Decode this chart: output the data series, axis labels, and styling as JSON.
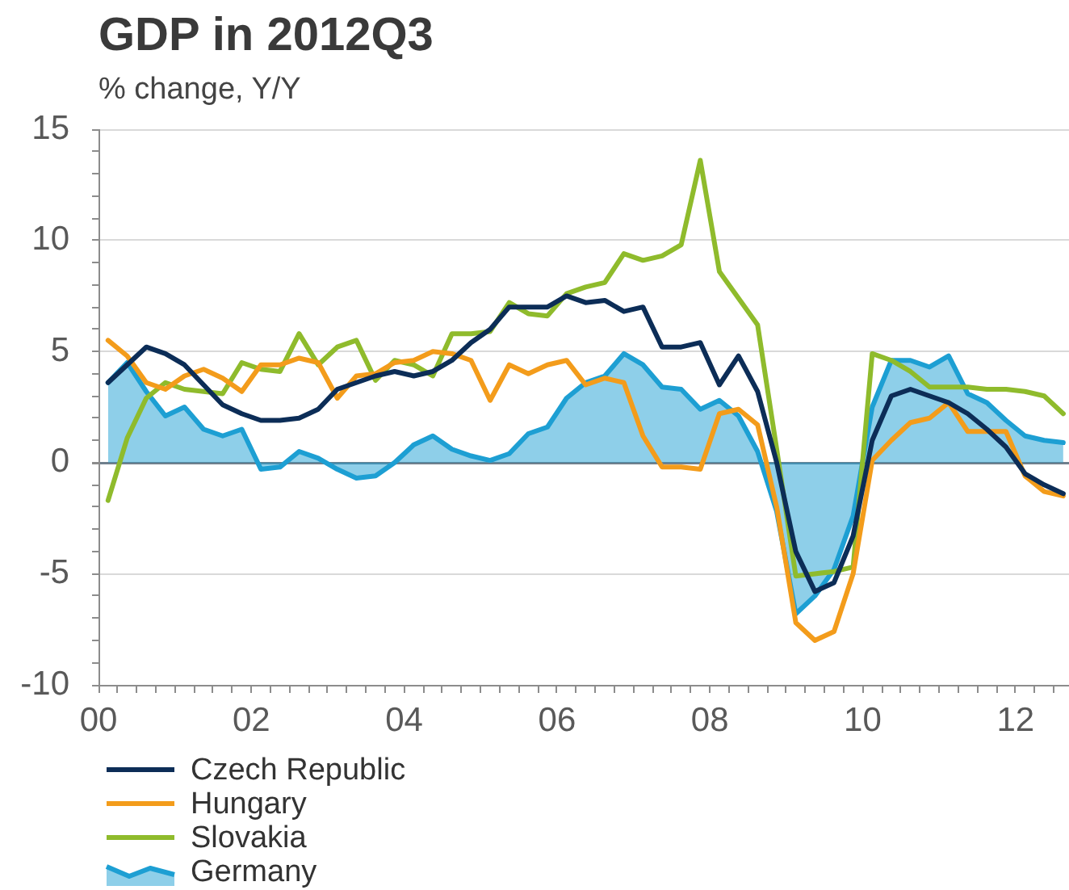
{
  "chart_data": {
    "type": "line",
    "title": "GDP in 2012Q3",
    "subtitle": "% change, Y/Y",
    "x": [
      2000.125,
      2000.375,
      2000.625,
      2000.875,
      2001.125,
      2001.375,
      2001.625,
      2001.875,
      2002.125,
      2002.375,
      2002.625,
      2002.875,
      2003.125,
      2003.375,
      2003.625,
      2003.875,
      2004.125,
      2004.375,
      2004.625,
      2004.875,
      2005.125,
      2005.375,
      2005.625,
      2005.875,
      2006.125,
      2006.375,
      2006.625,
      2006.875,
      2007.125,
      2007.375,
      2007.625,
      2007.875,
      2008.125,
      2008.375,
      2008.625,
      2008.875,
      2009.125,
      2009.375,
      2009.625,
      2009.875,
      2010.125,
      2010.375,
      2010.625,
      2010.875,
      2011.125,
      2011.375,
      2011.625,
      2011.875,
      2012.125,
      2012.375,
      2012.625
    ],
    "series": [
      {
        "name": "Czech Republic",
        "type": "line",
        "color": "#0c2d57",
        "values": [
          3.6,
          4.4,
          5.2,
          4.9,
          4.4,
          3.5,
          2.6,
          2.2,
          1.9,
          1.9,
          2.0,
          2.4,
          3.3,
          3.6,
          3.9,
          4.1,
          3.9,
          4.1,
          4.6,
          5.4,
          6.0,
          7.0,
          7.0,
          7.0,
          7.5,
          7.2,
          7.3,
          6.8,
          7.0,
          5.2,
          5.2,
          5.4,
          3.5,
          4.8,
          3.2,
          0.0,
          -4.0,
          -5.8,
          -5.4,
          -3.3,
          1.0,
          3.0,
          3.3,
          3.0,
          2.7,
          2.2,
          1.5,
          0.7,
          -0.5,
          -1.0,
          -1.4
        ]
      },
      {
        "name": "Hungary",
        "type": "line",
        "color": "#f39c1b",
        "values": [
          5.5,
          4.8,
          3.6,
          3.3,
          3.9,
          4.2,
          3.8,
          3.2,
          4.4,
          4.4,
          4.7,
          4.5,
          2.9,
          3.9,
          4.0,
          4.5,
          4.6,
          5.0,
          4.9,
          4.6,
          2.8,
          4.4,
          4.0,
          4.4,
          4.6,
          3.5,
          3.8,
          3.6,
          1.2,
          -0.2,
          -0.2,
          -0.3,
          2.2,
          2.4,
          1.7,
          -2.0,
          -7.2,
          -8.0,
          -7.6,
          -5.0,
          0.1,
          1.0,
          1.8,
          2.0,
          2.7,
          1.4,
          1.4,
          1.4,
          -0.6,
          -1.3,
          -1.5
        ]
      },
      {
        "name": "Slovakia",
        "type": "line",
        "color": "#8fbb2c",
        "values": [
          -1.7,
          1.1,
          2.9,
          3.6,
          3.3,
          3.2,
          3.1,
          4.5,
          4.2,
          4.1,
          5.8,
          4.4,
          5.2,
          5.5,
          3.7,
          4.6,
          4.4,
          3.9,
          5.8,
          5.8,
          5.9,
          7.2,
          6.7,
          6.6,
          7.6,
          7.9,
          8.1,
          9.4,
          9.1,
          9.3,
          9.8,
          13.6,
          8.6,
          7.4,
          6.2,
          0.6,
          -5.1,
          -5.0,
          -4.9,
          -4.7,
          4.9,
          4.6,
          4.1,
          3.4,
          3.4,
          3.4,
          3.3,
          3.3,
          3.2,
          3.0,
          2.2
        ]
      },
      {
        "name": "Germany",
        "type": "area",
        "color": "#1d9fd3",
        "values": [
          3.6,
          4.5,
          3.2,
          2.1,
          2.5,
          1.5,
          1.2,
          1.5,
          -0.3,
          -0.2,
          0.5,
          0.2,
          -0.3,
          -0.7,
          -0.6,
          0.0,
          0.8,
          1.2,
          0.6,
          0.3,
          0.1,
          0.4,
          1.3,
          1.6,
          2.9,
          3.6,
          3.9,
          4.9,
          4.4,
          3.4,
          3.3,
          2.4,
          2.8,
          2.1,
          0.5,
          -2.2,
          -6.8,
          -6.0,
          -4.8,
          -2.4,
          2.5,
          4.6,
          4.6,
          4.3,
          4.8,
          3.1,
          2.7,
          1.9,
          1.2,
          1.0,
          0.9
        ]
      }
    ],
    "xlim": [
      2000,
      2012.7
    ],
    "xticks": [
      {
        "value": 2000,
        "label": "00"
      },
      {
        "value": 2000.25,
        "label": null
      },
      {
        "value": 2000.5,
        "label": null
      },
      {
        "value": 2000.75,
        "label": null
      },
      {
        "value": 2001,
        "label": null
      },
      {
        "value": 2001.25,
        "label": null
      },
      {
        "value": 2001.5,
        "label": null
      },
      {
        "value": 2001.75,
        "label": null
      },
      {
        "value": 2002,
        "label": "02"
      },
      {
        "value": 2002.25,
        "label": null
      },
      {
        "value": 2002.5,
        "label": null
      },
      {
        "value": 2002.75,
        "label": null
      },
      {
        "value": 2003,
        "label": null
      },
      {
        "value": 2003.25,
        "label": null
      },
      {
        "value": 2003.5,
        "label": null
      },
      {
        "value": 2003.75,
        "label": null
      },
      {
        "value": 2004,
        "label": "04"
      },
      {
        "value": 2004.25,
        "label": null
      },
      {
        "value": 2004.5,
        "label": null
      },
      {
        "value": 2004.75,
        "label": null
      },
      {
        "value": 2005,
        "label": null
      },
      {
        "value": 2005.25,
        "label": null
      },
      {
        "value": 2005.5,
        "label": null
      },
      {
        "value": 2005.75,
        "label": null
      },
      {
        "value": 2006,
        "label": "06"
      },
      {
        "value": 2006.25,
        "label": null
      },
      {
        "value": 2006.5,
        "label": null
      },
      {
        "value": 2006.75,
        "label": null
      },
      {
        "value": 2007,
        "label": null
      },
      {
        "value": 2007.25,
        "label": null
      },
      {
        "value": 2007.5,
        "label": null
      },
      {
        "value": 2007.75,
        "label": null
      },
      {
        "value": 2008,
        "label": "08"
      },
      {
        "value": 2008.25,
        "label": null
      },
      {
        "value": 2008.5,
        "label": null
      },
      {
        "value": 2008.75,
        "label": null
      },
      {
        "value": 2009,
        "label": null
      },
      {
        "value": 2009.25,
        "label": null
      },
      {
        "value": 2009.5,
        "label": null
      },
      {
        "value": 2009.75,
        "label": null
      },
      {
        "value": 2010,
        "label": "10"
      },
      {
        "value": 2010.25,
        "label": null
      },
      {
        "value": 2010.5,
        "label": null
      },
      {
        "value": 2010.75,
        "label": null
      },
      {
        "value": 2011,
        "label": null
      },
      {
        "value": 2011.25,
        "label": null
      },
      {
        "value": 2011.5,
        "label": null
      },
      {
        "value": 2011.75,
        "label": null
      },
      {
        "value": 2012,
        "label": "12"
      },
      {
        "value": 2012.25,
        "label": null
      },
      {
        "value": 2012.5,
        "label": null
      }
    ],
    "ylim": [
      -10,
      15
    ],
    "yticks": [
      -10,
      {
        "value": -9,
        "label": null
      },
      {
        "value": -8,
        "label": null
      },
      {
        "value": -7,
        "label": null
      },
      {
        "value": -6,
        "label": null
      },
      -5,
      {
        "value": -4,
        "label": null
      },
      {
        "value": -3,
        "label": null
      },
      {
        "value": -2,
        "label": null
      },
      {
        "value": -1,
        "label": null
      },
      0,
      {
        "value": 1,
        "label": null
      },
      {
        "value": 2,
        "label": null
      },
      {
        "value": 3,
        "label": null
      },
      {
        "value": 4,
        "label": null
      },
      5,
      {
        "value": 6,
        "label": null
      },
      {
        "value": 7,
        "label": null
      },
      {
        "value": 8,
        "label": null
      },
      {
        "value": 9,
        "label": null
      },
      10,
      {
        "value": 11,
        "label": null
      },
      {
        "value": 12,
        "label": null
      },
      {
        "value": 13,
        "label": null
      },
      {
        "value": 14,
        "label": null
      },
      15
    ],
    "grid": "y",
    "legend": "bottom left",
    "marker": "none",
    "line_style": "solid"
  }
}
